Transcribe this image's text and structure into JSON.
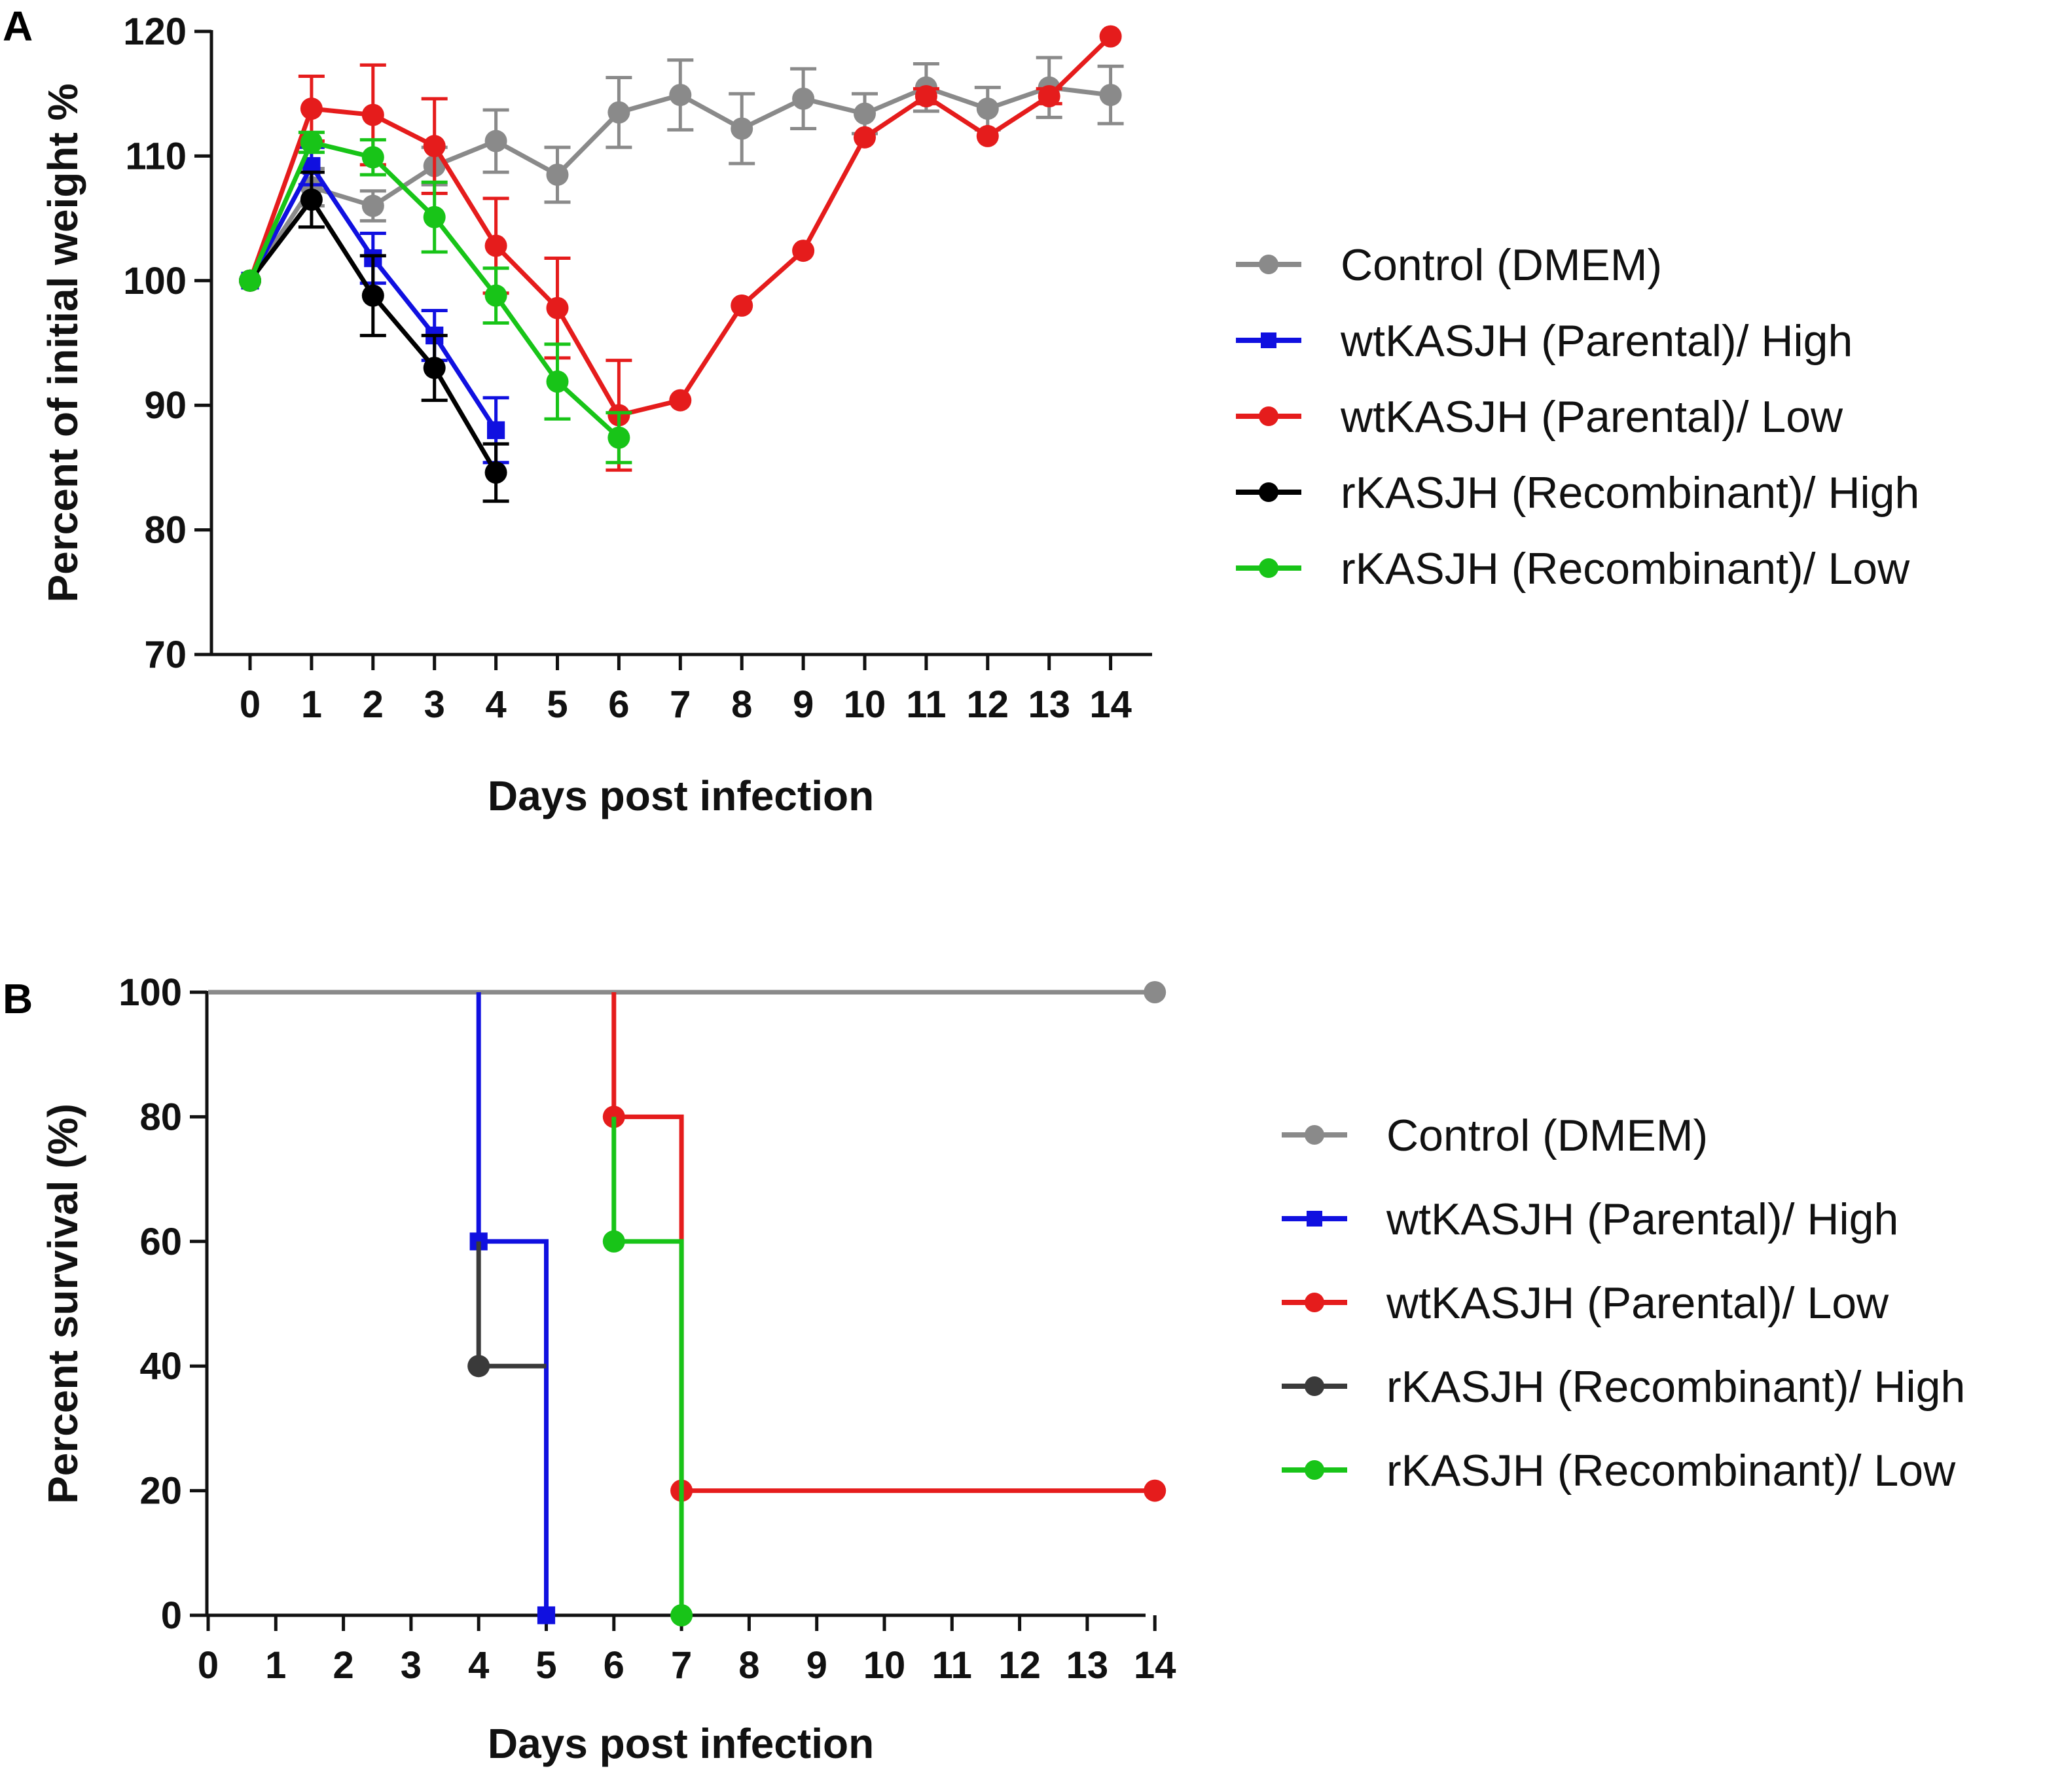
{
  "colors": {
    "control": "#8a8a8a",
    "wt_high": "#1010e0",
    "wt_low": "#e51c1c",
    "r_high": "#000000",
    "r_low": "#18c418",
    "r_high_survival": "#3a3a3a"
  },
  "chart_data": [
    {
      "panel": "A",
      "type": "line",
      "xlabel": "Days post infection",
      "ylabel": "Percent of initial weight %",
      "xlim": [
        -0.6,
        14.7
      ],
      "ylim": [
        70,
        120
      ],
      "x_ticks": [
        0,
        1,
        2,
        3,
        4,
        5,
        6,
        7,
        8,
        9,
        10,
        11,
        12,
        13,
        14
      ],
      "y_ticks": [
        70,
        80,
        90,
        100,
        110,
        120
      ],
      "legend_position": "right",
      "series": [
        {
          "name": "Control (DMEM)",
          "color_key": "control",
          "marker": "circle",
          "x": [
            0,
            1,
            2,
            3,
            4,
            5,
            6,
            7,
            8,
            9,
            10,
            11,
            12,
            13,
            14
          ],
          "y": [
            100,
            107.5,
            106,
            109.2,
            111.2,
            108.5,
            113.5,
            114.9,
            112.2,
            114.6,
            113.4,
            115.5,
            113.8,
            115.5,
            114.9
          ],
          "err": [
            0,
            1.5,
            1.2,
            1.5,
            2.5,
            2.2,
            2.8,
            2.8,
            2.8,
            2.4,
            1.6,
            1.9,
            1.7,
            2.4,
            2.3
          ]
        },
        {
          "name": "wtKASJH (Parental)/ High",
          "color_key": "wt_high",
          "marker": "square",
          "x": [
            0,
            1,
            2,
            3,
            4
          ],
          "y": [
            100,
            109.2,
            101.8,
            95.6,
            88.0
          ],
          "err": [
            0,
            1.5,
            2.0,
            2.0,
            2.6
          ]
        },
        {
          "name": "wtKASJH (Parental)/ Low",
          "color_key": "wt_low",
          "marker": "circle",
          "x": [
            0,
            1,
            2,
            3,
            4,
            5,
            6,
            7,
            8,
            9,
            10,
            11,
            12,
            13,
            14
          ],
          "y": [
            100,
            113.8,
            113.3,
            110.8,
            102.8,
            97.8,
            89.2,
            90.4,
            98.0,
            102.4,
            111.5,
            114.8,
            111.6,
            114.8,
            119.6
          ],
          "err": [
            0,
            2.6,
            4.0,
            3.8,
            3.8,
            4.0,
            4.4,
            0,
            0,
            0,
            0,
            0.6,
            0,
            0.6,
            0
          ]
        },
        {
          "name": "rKASJH (Recombinant)/ High",
          "color_key": "r_high",
          "marker": "circle",
          "x": [
            0,
            1,
            2,
            3,
            4
          ],
          "y": [
            100,
            106.5,
            98.8,
            93.0,
            84.6
          ],
          "err": [
            0,
            2.2,
            3.2,
            2.6,
            2.3
          ]
        },
        {
          "name": "rKASJH (Recombinant)/ Low",
          "color_key": "r_low",
          "marker": "circle",
          "x": [
            0,
            1,
            2,
            3,
            4,
            5,
            6
          ],
          "y": [
            100,
            111.1,
            109.9,
            105.1,
            98.8,
            91.9,
            87.4
          ],
          "err": [
            0,
            0.8,
            1.4,
            2.8,
            2.2,
            3.0,
            2.0
          ]
        }
      ]
    },
    {
      "panel": "B",
      "type": "line",
      "xlabel": "Days post infection",
      "ylabel": "Percent survival (%)",
      "xlim": [
        0,
        14
      ],
      "ylim": [
        0,
        100
      ],
      "x_ticks": [
        0,
        1,
        2,
        3,
        4,
        5,
        6,
        7,
        8,
        9,
        10,
        11,
        12,
        13,
        14
      ],
      "y_ticks": [
        0,
        20,
        40,
        60,
        80,
        100
      ],
      "legend_position": "right",
      "series": [
        {
          "name": "Control (DMEM)",
          "color_key": "control",
          "marker": "circle",
          "steps": [
            [
              0,
              100
            ],
            [
              14,
              100
            ]
          ],
          "markers": [
            [
              14,
              100
            ]
          ]
        },
        {
          "name": "wtKASJH (Parental)/ High",
          "color_key": "wt_high",
          "marker": "square",
          "steps": [
            [
              4,
              100
            ],
            [
              4,
              60
            ],
            [
              5,
              60
            ],
            [
              5,
              0
            ]
          ],
          "markers": [
            [
              4,
              60
            ],
            [
              5,
              0
            ]
          ]
        },
        {
          "name": "wtKASJH (Parental)/ Low",
          "color_key": "wt_low",
          "marker": "circle",
          "steps": [
            [
              6,
              100
            ],
            [
              6,
              80
            ],
            [
              7,
              80
            ],
            [
              7,
              20
            ],
            [
              14,
              20
            ]
          ],
          "markers": [
            [
              6,
              80
            ],
            [
              7,
              20
            ],
            [
              14,
              20
            ]
          ]
        },
        {
          "name": "rKASJH (Recombinant)/ High",
          "color_key": "r_high_survival",
          "marker": "circle",
          "steps": [
            [
              4,
              60
            ],
            [
              4,
              40
            ],
            [
              5,
              40
            ]
          ],
          "markers": [
            [
              4,
              40
            ]
          ]
        },
        {
          "name": "rKASJH (Recombinant)/ Low",
          "color_key": "r_low",
          "marker": "circle",
          "steps": [
            [
              6,
              80
            ],
            [
              6,
              60
            ],
            [
              7,
              60
            ],
            [
              7,
              0
            ]
          ],
          "markers": [
            [
              6,
              60
            ],
            [
              7,
              0
            ]
          ]
        }
      ]
    }
  ]
}
